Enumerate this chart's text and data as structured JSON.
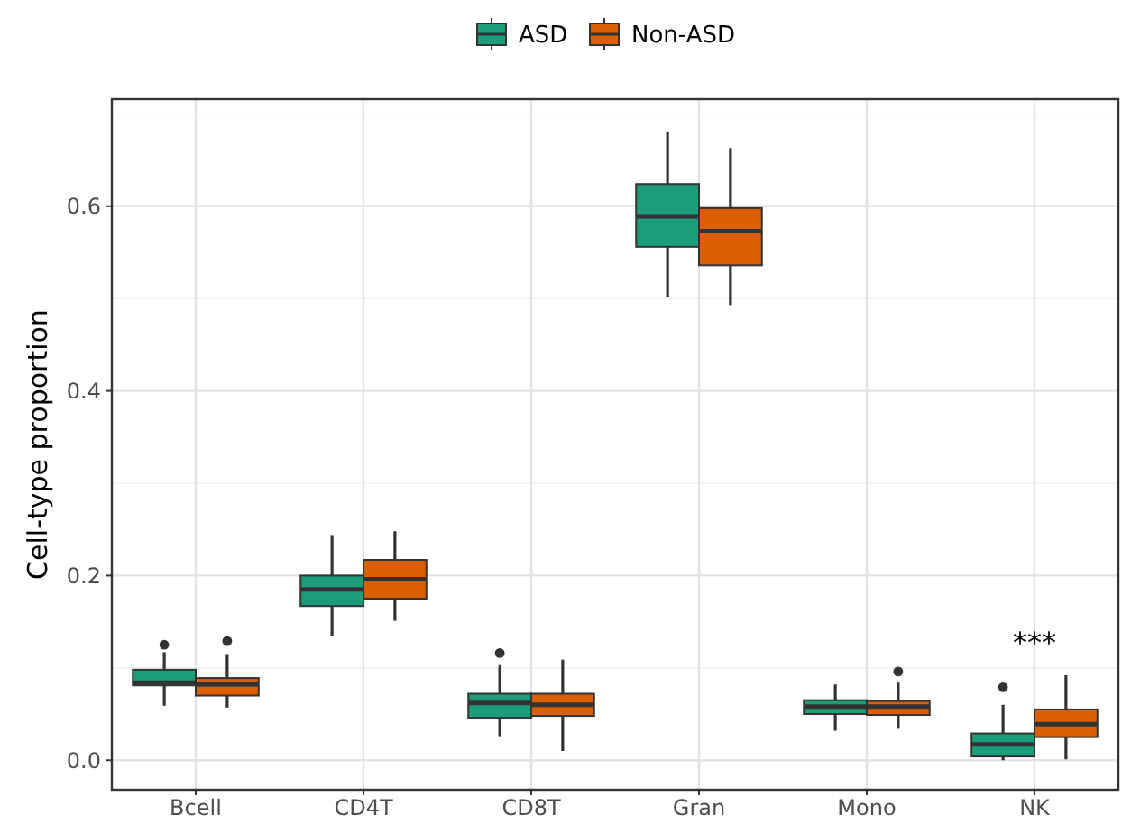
{
  "chart_data": {
    "type": "box",
    "ylabel": "Cell-type proportion",
    "categories": [
      "Bcell",
      "CD4T",
      "CD8T",
      "Gran",
      "Mono",
      "NK"
    ],
    "series": [
      {
        "name": "ASD",
        "color": "#1b9e77",
        "boxes": [
          {
            "low": 0.059,
            "q1": 0.081,
            "median": 0.084,
            "q3": 0.098,
            "high": 0.117,
            "outliers": [
              0.125
            ]
          },
          {
            "low": 0.134,
            "q1": 0.167,
            "median": 0.185,
            "q3": 0.2,
            "high": 0.244
          },
          {
            "low": 0.026,
            "q1": 0.046,
            "median": 0.062,
            "q3": 0.072,
            "high": 0.103,
            "outliers": [
              0.116
            ]
          },
          {
            "low": 0.502,
            "q1": 0.556,
            "median": 0.589,
            "q3": 0.624,
            "high": 0.681
          },
          {
            "low": 0.032,
            "q1": 0.05,
            "median": 0.058,
            "q3": 0.065,
            "high": 0.082
          },
          {
            "low": 0,
            "q1": 0.004,
            "median": 0.017,
            "q3": 0.029,
            "high": 0.06,
            "outliers": [
              0.079
            ]
          }
        ]
      },
      {
        "name": "Non-ASD",
        "color": "#d95f02",
        "boxes": [
          {
            "low": 0.057,
            "q1": 0.07,
            "median": 0.082,
            "q3": 0.089,
            "high": 0.115,
            "outliers": [
              0.129
            ]
          },
          {
            "low": 0.151,
            "q1": 0.175,
            "median": 0.196,
            "q3": 0.217,
            "high": 0.248
          },
          {
            "low": 0.01,
            "q1": 0.048,
            "median": 0.06,
            "q3": 0.072,
            "high": 0.109
          },
          {
            "low": 0.493,
            "q1": 0.536,
            "median": 0.573,
            "q3": 0.598,
            "high": 0.663
          },
          {
            "low": 0.034,
            "q1": 0.049,
            "median": 0.058,
            "q3": 0.064,
            "high": 0.084,
            "outliers": [
              0.096
            ]
          },
          {
            "low": 0.001,
            "q1": 0.025,
            "median": 0.039,
            "q3": 0.055,
            "high": 0.092
          }
        ]
      }
    ],
    "annotations": [
      "***"
    ],
    "ylim": [
      -0.032,
      0.716
    ],
    "yticks": [
      {
        "value": 0,
        "label": "0.0"
      },
      {
        "value": 0.2,
        "label": "0.2"
      },
      {
        "value": 0.4,
        "label": "0.4"
      },
      {
        "value": 0.6,
        "label": "0.6"
      }
    ],
    "grid": true,
    "legend": "top"
  }
}
